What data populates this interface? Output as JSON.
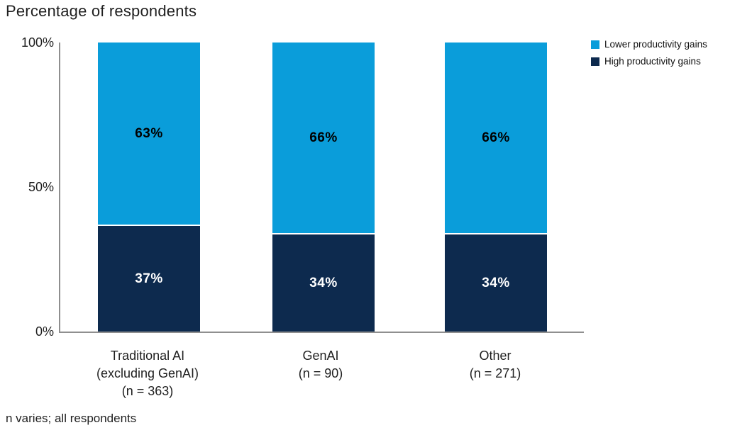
{
  "title": "Percentage of respondents",
  "footnote": "n varies; all respondents",
  "colors": {
    "lower_gains": "#0a9dda",
    "high_gains": "#0d2a4e",
    "axis": "#8f8f8f",
    "value_label_on_light": "#000000",
    "value_label_on_dark": "#ffffff"
  },
  "legend": {
    "position": "top-right",
    "items": [
      {
        "label": "Lower productivity gains",
        "color_key": "lower_gains"
      },
      {
        "label": "High productivity gains",
        "color_key": "high_gains"
      }
    ]
  },
  "y_axis": {
    "ticks": [
      {
        "label": "100%",
        "value": 100
      },
      {
        "label": "50%",
        "value": 50
      },
      {
        "label": "0%",
        "value": 0
      }
    ]
  },
  "chart_data": {
    "type": "bar",
    "stacked": true,
    "title": "Percentage of respondents",
    "xlabel": "",
    "ylabel": "Percentage of respondents",
    "ylim": [
      0,
      100
    ],
    "unit": "%",
    "grid": false,
    "legend_position": "top-right",
    "categories": [
      "Traditional AI (excluding GenAI) (n = 363)",
      "GenAI (n = 90)",
      "Other (n = 271)"
    ],
    "category_lines": [
      [
        "Traditional AI",
        "(excluding GenAI)",
        "(n = 363)"
      ],
      [
        "GenAI",
        "(n = 90)"
      ],
      [
        "Other",
        "(n = 271)"
      ]
    ],
    "series": [
      {
        "name": "Lower productivity gains",
        "color_key": "lower_gains",
        "values": [
          63,
          66,
          66
        ],
        "labels": [
          "63%",
          "66%",
          "66%"
        ]
      },
      {
        "name": "High productivity gains",
        "color_key": "high_gains",
        "values": [
          37,
          34,
          34
        ],
        "labels": [
          "37%",
          "34%",
          "34%"
        ]
      }
    ],
    "footnote": "n varies; all respondents"
  }
}
